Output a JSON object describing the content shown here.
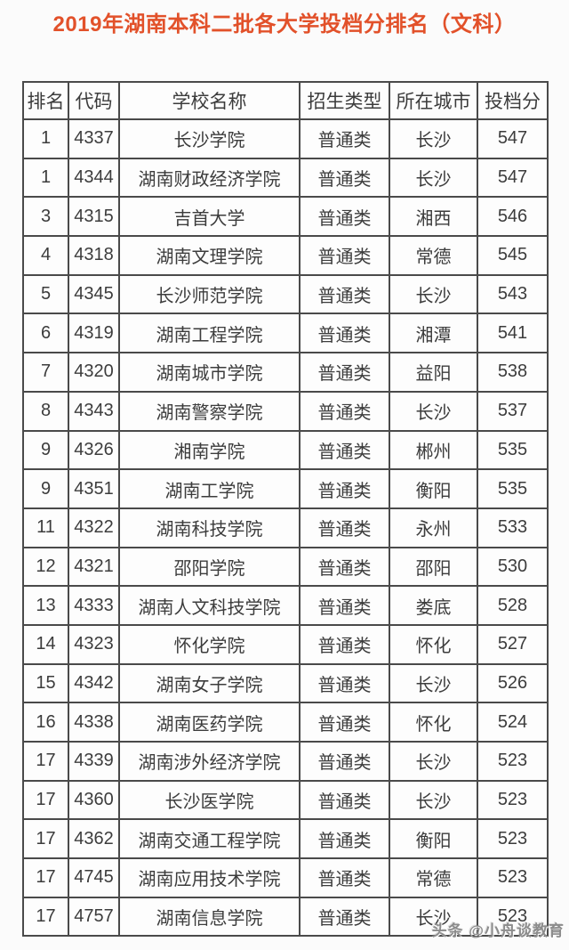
{
  "page": {
    "title": "2019年湖南本科二批各大学投档分排名（文科）",
    "title_color": "#e2512a",
    "watermark": "头条 @小舟谈教育"
  },
  "table": {
    "headers": [
      "排名",
      "代码",
      "学校名称",
      "招生类型",
      "所在城市",
      "投档分"
    ],
    "rows": [
      [
        "1",
        "4337",
        "长沙学院",
        "普通类",
        "长沙",
        "547"
      ],
      [
        "1",
        "4344",
        "湖南财政经济学院",
        "普通类",
        "长沙",
        "547"
      ],
      [
        "3",
        "4315",
        "吉首大学",
        "普通类",
        "湘西",
        "546"
      ],
      [
        "4",
        "4318",
        "湖南文理学院",
        "普通类",
        "常德",
        "545"
      ],
      [
        "5",
        "4345",
        "长沙师范学院",
        "普通类",
        "长沙",
        "543"
      ],
      [
        "6",
        "4319",
        "湖南工程学院",
        "普通类",
        "湘潭",
        "541"
      ],
      [
        "7",
        "4320",
        "湖南城市学院",
        "普通类",
        "益阳",
        "538"
      ],
      [
        "8",
        "4343",
        "湖南警察学院",
        "普通类",
        "长沙",
        "537"
      ],
      [
        "9",
        "4326",
        "湘南学院",
        "普通类",
        "郴州",
        "535"
      ],
      [
        "9",
        "4351",
        "湖南工学院",
        "普通类",
        "衡阳",
        "535"
      ],
      [
        "11",
        "4322",
        "湖南科技学院",
        "普通类",
        "永州",
        "533"
      ],
      [
        "12",
        "4321",
        "邵阳学院",
        "普通类",
        "邵阳",
        "530"
      ],
      [
        "13",
        "4333",
        "湖南人文科技学院",
        "普通类",
        "娄底",
        "528"
      ],
      [
        "14",
        "4323",
        "怀化学院",
        "普通类",
        "怀化",
        "527"
      ],
      [
        "15",
        "4342",
        "湖南女子学院",
        "普通类",
        "长沙",
        "526"
      ],
      [
        "16",
        "4338",
        "湖南医药学院",
        "普通类",
        "怀化",
        "524"
      ],
      [
        "17",
        "4339",
        "湖南涉外经济学院",
        "普通类",
        "长沙",
        "523"
      ],
      [
        "17",
        "4360",
        "长沙医学院",
        "普通类",
        "长沙",
        "523"
      ],
      [
        "17",
        "4362",
        "湖南交通工程学院",
        "普通类",
        "衡阳",
        "523"
      ],
      [
        "17",
        "4745",
        "湖南应用技术学院",
        "普通类",
        "常德",
        "523"
      ],
      [
        "17",
        "4757",
        "湖南信息学院",
        "普通类",
        "长沙",
        "523"
      ]
    ]
  }
}
